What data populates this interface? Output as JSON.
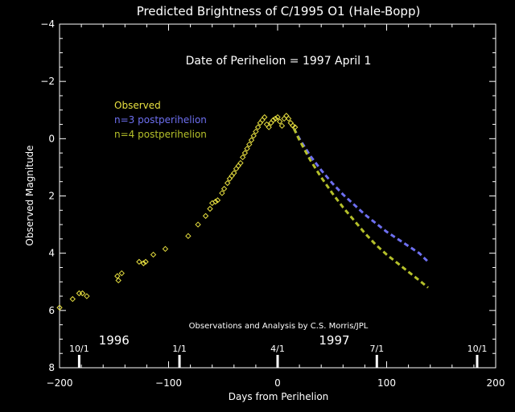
{
  "chart_data": {
    "type": "scatter",
    "title": "Predicted Brightness of C/1995 O1 (Hale-Bopp)",
    "xlabel": "Days from Perihelion",
    "ylabel": "Observed Magnitude",
    "xlim": [
      -200,
      200
    ],
    "ylim": [
      8,
      -4
    ],
    "x_ticks": [
      -200,
      -100,
      0,
      100,
      200
    ],
    "y_ticks": [
      -4,
      -2,
      0,
      2,
      4,
      6,
      8
    ],
    "grid": false,
    "annotation": "Date of Perihelion = 1997 April 1",
    "credit": "Observations and Analysis by C.S. Morris/JPL",
    "years": [
      {
        "label": "1996",
        "x": -150
      },
      {
        "label": "1997",
        "x": 52
      }
    ],
    "date_markers": [
      {
        "label": "10/1",
        "x": -182
      },
      {
        "label": "1/1",
        "x": -90
      },
      {
        "label": "4/1",
        "x": 0
      },
      {
        "label": "7/1",
        "x": 91
      },
      {
        "label": "10/1",
        "x": 183
      }
    ],
    "legend": [
      {
        "name": "Observed",
        "color": "#e8e040"
      },
      {
        "name": "n=3  postperihelion",
        "color": "#6d6ff0"
      },
      {
        "name": "n=4  postperihelion",
        "color": "#b5c02a"
      }
    ],
    "series": [
      {
        "name": "Observed",
        "style": "diamond-markers",
        "color": "#e8e040",
        "points": [
          [
            -200,
            5.9
          ],
          [
            -188,
            5.6
          ],
          [
            -182,
            5.4
          ],
          [
            -179,
            5.4
          ],
          [
            -175,
            5.5
          ],
          [
            -147,
            4.8
          ],
          [
            -143,
            4.7
          ],
          [
            -146,
            4.95
          ],
          [
            -127,
            4.3
          ],
          [
            -123,
            4.35
          ],
          [
            -121,
            4.3
          ],
          [
            -114,
            4.05
          ],
          [
            -103,
            3.85
          ],
          [
            -82,
            3.4
          ],
          [
            -73,
            3.0
          ],
          [
            -66,
            2.7
          ],
          [
            -62,
            2.45
          ],
          [
            -60,
            2.25
          ],
          [
            -57,
            2.2
          ],
          [
            -55,
            2.15
          ],
          [
            -51,
            1.9
          ],
          [
            -49,
            1.75
          ],
          [
            -46,
            1.55
          ],
          [
            -44,
            1.4
          ],
          [
            -42,
            1.3
          ],
          [
            -40,
            1.2
          ],
          [
            -38,
            1.05
          ],
          [
            -36,
            0.95
          ],
          [
            -34,
            0.85
          ],
          [
            -32,
            0.65
          ],
          [
            -30,
            0.5
          ],
          [
            -28,
            0.35
          ],
          [
            -26,
            0.2
          ],
          [
            -24,
            0.05
          ],
          [
            -22,
            -0.1
          ],
          [
            -20,
            -0.25
          ],
          [
            -18,
            -0.4
          ],
          [
            -16,
            -0.55
          ],
          [
            -14,
            -0.65
          ],
          [
            -12,
            -0.75
          ],
          [
            -10,
            -0.5
          ],
          [
            -8,
            -0.4
          ],
          [
            -6,
            -0.55
          ],
          [
            -4,
            -0.65
          ],
          [
            -2,
            -0.7
          ],
          [
            0,
            -0.75
          ],
          [
            2,
            -0.6
          ],
          [
            4,
            -0.45
          ],
          [
            6,
            -0.7
          ],
          [
            8,
            -0.8
          ],
          [
            10,
            -0.7
          ],
          [
            12,
            -0.55
          ],
          [
            14,
            -0.45
          ],
          [
            16,
            -0.4
          ]
        ]
      },
      {
        "name": "n=3  postperihelion",
        "style": "dashed-line",
        "color": "#6d6ff0",
        "points": [
          [
            15,
            -0.35
          ],
          [
            20,
            0.0
          ],
          [
            30,
            0.6
          ],
          [
            40,
            1.1
          ],
          [
            50,
            1.55
          ],
          [
            60,
            1.95
          ],
          [
            70,
            2.3
          ],
          [
            80,
            2.65
          ],
          [
            90,
            2.95
          ],
          [
            100,
            3.25
          ],
          [
            110,
            3.5
          ],
          [
            120,
            3.75
          ],
          [
            130,
            4.0
          ],
          [
            138,
            4.3
          ]
        ]
      },
      {
        "name": "n=4  postperihelion",
        "style": "dashed-line",
        "color": "#b5c02a",
        "points": [
          [
            15,
            -0.35
          ],
          [
            20,
            0.05
          ],
          [
            30,
            0.75
          ],
          [
            40,
            1.35
          ],
          [
            50,
            1.9
          ],
          [
            60,
            2.4
          ],
          [
            70,
            2.85
          ],
          [
            80,
            3.3
          ],
          [
            90,
            3.7
          ],
          [
            100,
            4.05
          ],
          [
            110,
            4.35
          ],
          [
            120,
            4.65
          ],
          [
            130,
            4.95
          ],
          [
            138,
            5.2
          ]
        ]
      }
    ]
  }
}
